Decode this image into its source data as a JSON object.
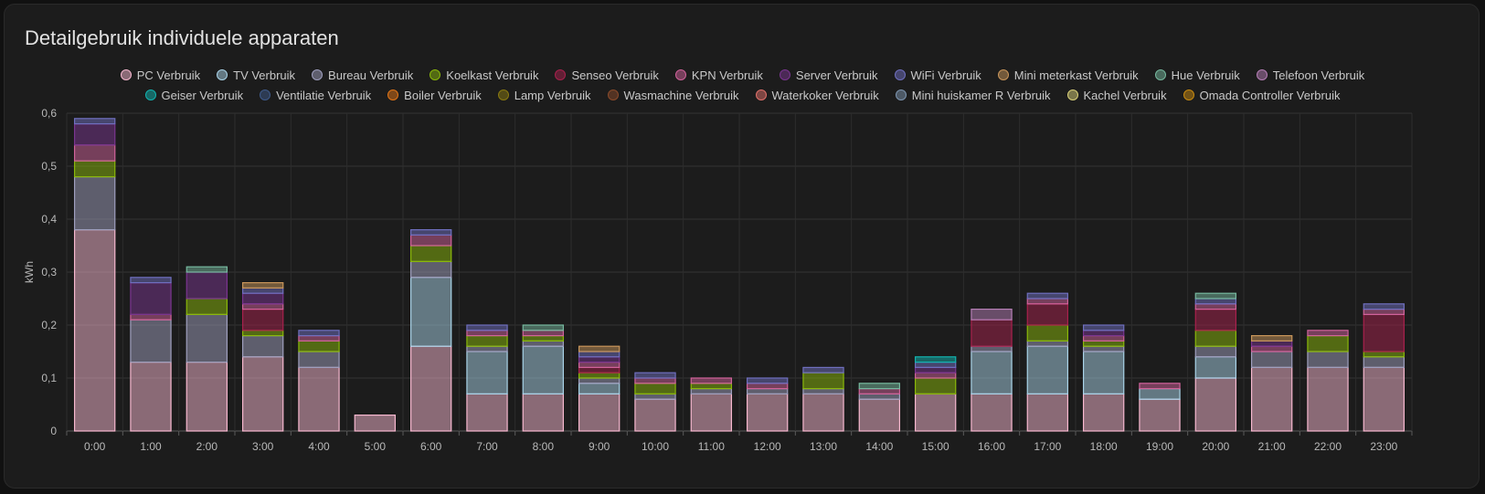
{
  "card": {
    "title": "Detailgebruik individuele apparaten"
  },
  "chart_data": {
    "type": "bar",
    "stacked": true,
    "title": "Detailgebruik individuele apparaten",
    "ylabel": "kWh",
    "xlabel": "",
    "ylim": [
      0,
      0.6
    ],
    "yticks": [
      "0",
      "0,1",
      "0,2",
      "0,3",
      "0,4",
      "0,5",
      "0,6"
    ],
    "grid": true,
    "legend_position": "top",
    "categories": [
      "0:00",
      "1:00",
      "2:00",
      "3:00",
      "4:00",
      "5:00",
      "6:00",
      "7:00",
      "8:00",
      "9:00",
      "10:00",
      "11:00",
      "12:00",
      "13:00",
      "14:00",
      "15:00",
      "16:00",
      "17:00",
      "18:00",
      "19:00",
      "20:00",
      "21:00",
      "22:00",
      "23:00"
    ],
    "series": [
      {
        "name": "PC Verbruik",
        "color": "#f7b8cf",
        "values": [
          0.38,
          0.13,
          0.13,
          0.14,
          0.12,
          0.03,
          0.16,
          0.07,
          0.07,
          0.07,
          0.06,
          0.07,
          0.07,
          0.07,
          0.06,
          0.07,
          0.07,
          0.07,
          0.07,
          0.06,
          0.1,
          0.12,
          0.12,
          0.12
        ]
      },
      {
        "name": "TV Verbruik",
        "color": "#a9d3e8",
        "values": [
          0,
          0,
          0,
          0,
          0,
          0,
          0.13,
          0.08,
          0.09,
          0.02,
          0,
          0,
          0,
          0,
          0,
          0,
          0.08,
          0.09,
          0.08,
          0.02,
          0.04,
          0,
          0,
          0
        ]
      },
      {
        "name": "Bureau Verbruik",
        "color": "#9f9fbe",
        "values": [
          0.1,
          0.08,
          0.09,
          0.04,
          0.03,
          0,
          0.03,
          0.01,
          0.01,
          0.01,
          0.01,
          0.01,
          0.01,
          0.01,
          0.01,
          0,
          0.01,
          0.01,
          0.01,
          0,
          0.02,
          0.03,
          0.03,
          0.02
        ]
      },
      {
        "name": "Koelkast Verbruik",
        "color": "#8ab80a",
        "values": [
          0.03,
          0,
          0.03,
          0.01,
          0.02,
          0,
          0.03,
          0.02,
          0.01,
          0.01,
          0.02,
          0.01,
          0,
          0.03,
          0,
          0.03,
          0,
          0.03,
          0.01,
          0,
          0.03,
          0,
          0.03,
          0.01
        ]
      },
      {
        "name": "Senseo Verbruik",
        "color": "#a8214d",
        "values": [
          0,
          0,
          0,
          0.04,
          0,
          0,
          0,
          0,
          0,
          0.01,
          0,
          0,
          0,
          0,
          0,
          0,
          0.05,
          0.04,
          0,
          0,
          0.04,
          0,
          0,
          0.07
        ]
      },
      {
        "name": "KPN Verbruik",
        "color": "#d0629a",
        "values": [
          0.03,
          0.01,
          0,
          0.01,
          0.01,
          0,
          0.02,
          0.01,
          0.01,
          0.01,
          0.01,
          0.01,
          0.01,
          0,
          0.01,
          0.01,
          0,
          0.01,
          0.01,
          0.01,
          0.01,
          0.01,
          0.01,
          0.01
        ]
      },
      {
        "name": "Server Verbruik",
        "color": "#7a3590",
        "values": [
          0.04,
          0.06,
          0.05,
          0.02,
          0,
          0,
          0,
          0,
          0,
          0.01,
          0,
          0,
          0,
          0,
          0,
          0.01,
          0,
          0,
          0.01,
          0,
          0,
          0.01,
          0,
          0
        ]
      },
      {
        "name": "WiFi Verbruik",
        "color": "#6f6fbf",
        "values": [
          0.01,
          0.01,
          0,
          0.01,
          0.01,
          0,
          0.01,
          0.01,
          0,
          0.01,
          0.01,
          0,
          0.01,
          0.01,
          0,
          0.01,
          0,
          0.01,
          0.01,
          0,
          0.01,
          0,
          0,
          0.01
        ]
      },
      {
        "name": "Mini meterkast Verbruik",
        "color": "#c8955a",
        "values": [
          0,
          0,
          0,
          0.01,
          0,
          0,
          0,
          0,
          0,
          0.01,
          0,
          0,
          0,
          0,
          0,
          0,
          0,
          0,
          0,
          0,
          0,
          0.01,
          0,
          0
        ]
      },
      {
        "name": "Hue Verbruik",
        "color": "#76b89e",
        "values": [
          0,
          0,
          0.01,
          0,
          0,
          0,
          0,
          0,
          0.01,
          0,
          0,
          0,
          0,
          0,
          0.01,
          0,
          0,
          0,
          0,
          0,
          0.01,
          0,
          0,
          0
        ]
      },
      {
        "name": "Telefoon Verbruik",
        "color": "#b57eb5",
        "values": [
          0,
          0,
          0,
          0,
          0,
          0,
          0,
          0,
          0,
          0,
          0,
          0,
          0,
          0,
          0,
          0,
          0.02,
          0,
          0,
          0,
          0,
          0,
          0,
          0
        ]
      },
      {
        "name": "Geiser Verbruik",
        "color": "#12b3b0",
        "values": [
          0,
          0,
          0,
          0,
          0,
          0,
          0,
          0,
          0,
          0,
          0,
          0,
          0,
          0,
          0,
          0.01,
          0,
          0,
          0,
          0,
          0,
          0,
          0,
          0
        ]
      },
      {
        "name": "Ventilatie Verbruik",
        "color": "#3e5a8a",
        "values": [
          0,
          0,
          0,
          0,
          0,
          0,
          0,
          0,
          0,
          0,
          0,
          0,
          0,
          0,
          0,
          0,
          0,
          0,
          0,
          0,
          0,
          0,
          0,
          0
        ]
      },
      {
        "name": "Boiler Verbruik",
        "color": "#e07416",
        "values": [
          0,
          0,
          0,
          0,
          0,
          0,
          0,
          0,
          0,
          0,
          0,
          0,
          0,
          0,
          0,
          0,
          0,
          0,
          0,
          0,
          0,
          0,
          0,
          0
        ]
      },
      {
        "name": "Lamp Verbruik",
        "color": "#8a7a10",
        "values": [
          0,
          0,
          0,
          0,
          0,
          0,
          0,
          0,
          0,
          0,
          0,
          0,
          0,
          0,
          0,
          0,
          0,
          0,
          0,
          0,
          0,
          0,
          0,
          0
        ]
      },
      {
        "name": "Wasmachine Verbruik",
        "color": "#8a4a2a",
        "values": [
          0,
          0,
          0,
          0,
          0,
          0,
          0,
          0,
          0,
          0,
          0,
          0,
          0,
          0,
          0,
          0,
          0,
          0,
          0,
          0,
          0,
          0,
          0,
          0
        ]
      },
      {
        "name": "Waterkoker Verbruik",
        "color": "#e0706a",
        "values": [
          0,
          0,
          0,
          0,
          0,
          0,
          0,
          0,
          0,
          0,
          0,
          0,
          0,
          0,
          0,
          0,
          0,
          0,
          0,
          0,
          0,
          0,
          0,
          0
        ]
      },
      {
        "name": "Mini huiskamer R Verbruik",
        "color": "#7d95b0",
        "values": [
          0,
          0,
          0,
          0,
          0,
          0,
          0,
          0,
          0,
          0,
          0,
          0,
          0,
          0,
          0,
          0,
          0,
          0,
          0,
          0,
          0,
          0,
          0,
          0
        ]
      },
      {
        "name": "Kachel Verbruik",
        "color": "#d8cf78",
        "values": [
          0,
          0,
          0,
          0,
          0,
          0,
          0,
          0,
          0,
          0,
          0,
          0,
          0,
          0,
          0,
          0,
          0,
          0,
          0,
          0,
          0,
          0,
          0,
          0
        ]
      },
      {
        "name": "Omada Controller Verbruik",
        "color": "#c88a10",
        "values": [
          0,
          0,
          0,
          0,
          0,
          0,
          0,
          0,
          0,
          0,
          0,
          0,
          0,
          0,
          0,
          0,
          0,
          0,
          0,
          0,
          0,
          0,
          0,
          0
        ]
      }
    ]
  }
}
